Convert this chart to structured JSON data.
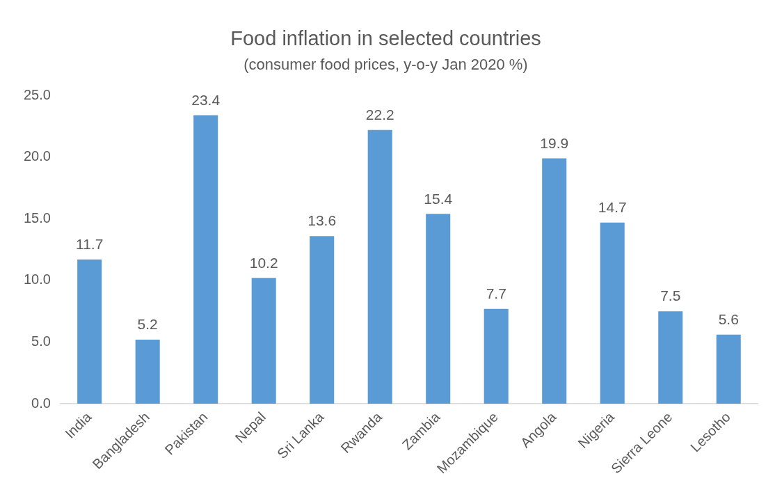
{
  "chart_data": {
    "type": "bar",
    "title": "Food inflation in selected countries",
    "subtitle": "(consumer food prices, y-o-y Jan 2020 %)",
    "categories": [
      "India",
      "Bangladesh",
      "Pakistan",
      "Nepal",
      "Sri Lanka",
      "Rwanda",
      "Zambia",
      "Mozambique",
      "Angola",
      "Nigeria",
      "Sierra Leone",
      "Lesotho"
    ],
    "values": [
      11.7,
      5.2,
      23.4,
      10.2,
      13.6,
      22.2,
      15.4,
      7.7,
      19.9,
      14.7,
      7.5,
      5.6
    ],
    "color": "#5b9bd5",
    "ylim": [
      0,
      25
    ],
    "yticks": [
      {
        "value": 0,
        "label": "0.0"
      },
      {
        "value": 5,
        "label": "5.0"
      },
      {
        "value": 10,
        "label": "10.0"
      },
      {
        "value": 15,
        "label": "15.0"
      },
      {
        "value": 20,
        "label": "20.0"
      },
      {
        "value": 25,
        "label": "25.0"
      }
    ],
    "grid": false,
    "legend": false,
    "data_labels": true
  }
}
